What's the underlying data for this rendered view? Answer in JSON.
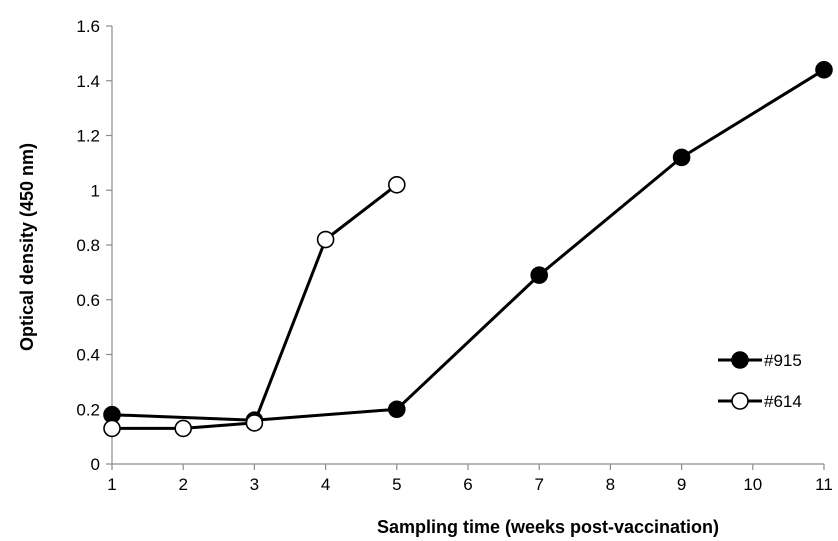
{
  "chart_data": {
    "type": "line",
    "title": "",
    "xlabel": "Sampling time (weeks post-vaccination)",
    "ylabel": "Optical density  (450 nm)",
    "xlim": [
      1,
      11
    ],
    "ylim": [
      0,
      1.6
    ],
    "x_ticks": [
      "1",
      "2",
      "3",
      "4",
      "5",
      "6",
      "7",
      "8",
      "9",
      "10",
      "11"
    ],
    "y_ticks": [
      "0",
      "0.2",
      "0.4",
      "0.6",
      "0.8",
      "1",
      "1.2",
      "1.4",
      "1.6"
    ],
    "grid": false,
    "legend_position": "bottom-right",
    "series": [
      {
        "name": "#915",
        "marker": "filled-circle",
        "color": "#000000",
        "points": [
          [
            1,
            0.18
          ],
          [
            3,
            0.16
          ],
          [
            5,
            0.2
          ],
          [
            7,
            0.69
          ],
          [
            9,
            1.12
          ],
          [
            11,
            1.44
          ]
        ]
      },
      {
        "name": "#614",
        "marker": "open-circle",
        "color": "#000000",
        "points": [
          [
            1,
            0.13
          ],
          [
            2,
            0.13
          ],
          [
            3,
            0.15
          ],
          [
            4,
            0.82
          ],
          [
            5,
            1.02
          ]
        ]
      }
    ]
  }
}
